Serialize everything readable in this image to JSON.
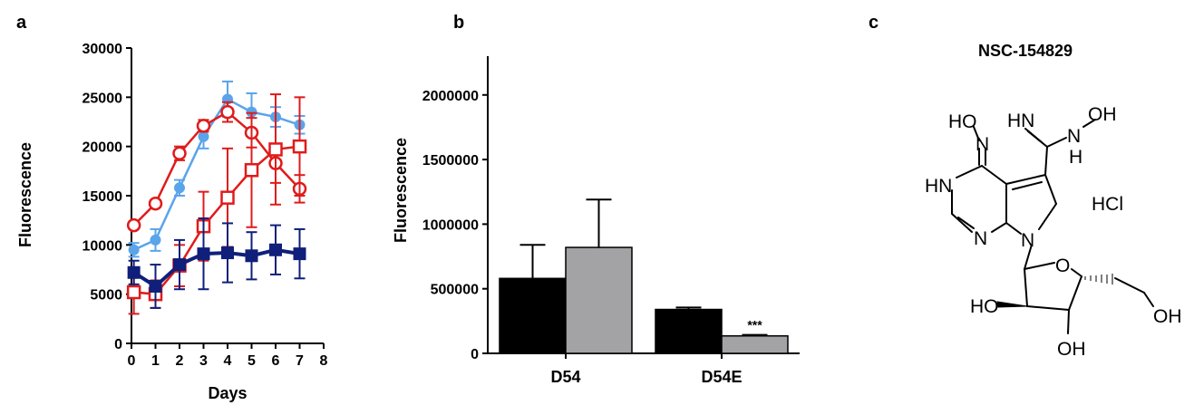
{
  "panels": {
    "a": {
      "letter": "a"
    },
    "b": {
      "letter": "b"
    },
    "c": {
      "letter": "c"
    }
  },
  "chart_data": [
    {
      "type": "line",
      "xlabel": "Days",
      "ylabel": "Fluorescence",
      "xlim": [
        0,
        8
      ],
      "ylim": [
        0,
        30000
      ],
      "xticks": [
        0,
        1,
        2,
        3,
        4,
        5,
        6,
        7,
        8
      ],
      "yticks": [
        0,
        5000,
        10000,
        15000,
        20000,
        25000,
        30000
      ],
      "grid": false,
      "series": [
        {
          "color": "#5aa4ea",
          "marker": "filled-circle",
          "x": [
            0.1,
            1,
            2,
            3,
            4,
            5,
            6,
            7
          ],
          "y": [
            9500,
            10500,
            15800,
            21000,
            24800,
            23500,
            23000,
            22200
          ],
          "err": [
            700,
            1100,
            800,
            1200,
            1800,
            1900,
            1000,
            900
          ]
        },
        {
          "color": "#e01b1b",
          "marker": "open-circle",
          "x": [
            0.1,
            1,
            2,
            3,
            4,
            5,
            6,
            7
          ],
          "y": [
            12000,
            14200,
            19300,
            22100,
            23500,
            21400,
            18300,
            15700
          ],
          "err": [
            300,
            400,
            700,
            600,
            1000,
            1500,
            2000,
            1400
          ]
        },
        {
          "color": "#e01b1b",
          "marker": "open-square",
          "x": [
            0.1,
            1,
            2,
            3,
            4,
            5,
            6,
            7
          ],
          "y": [
            5200,
            5000,
            7900,
            11900,
            14800,
            17600,
            19700,
            20000
          ],
          "err": [
            2200,
            1400,
            2100,
            3500,
            5000,
            5800,
            5600,
            5000
          ]
        },
        {
          "color": "#0f1f7a",
          "marker": "filled-square",
          "x": [
            0.1,
            1,
            2,
            3,
            4,
            5,
            6,
            7
          ],
          "y": [
            7200,
            5800,
            8000,
            9100,
            9200,
            8900,
            9500,
            9100
          ],
          "err": [
            1200,
            2200,
            2500,
            3600,
            3000,
            2400,
            2500,
            2500
          ]
        }
      ]
    },
    {
      "type": "bar",
      "xlabel": "",
      "ylabel": "Fluorescence",
      "ylim": [
        0,
        2300000
      ],
      "yticks": [
        0,
        500000,
        1000000,
        1500000,
        2000000
      ],
      "categories": [
        "D54",
        "D54E"
      ],
      "series": [
        {
          "color": "#000000",
          "values": [
            580000,
            340000
          ],
          "err": [
            260000,
            15000
          ]
        },
        {
          "color": "#a3a3a6",
          "values": [
            820000,
            135000
          ],
          "err": [
            370000,
            8000
          ]
        }
      ],
      "annotations": [
        {
          "category": "D54E",
          "series": 1,
          "text": "***"
        }
      ]
    }
  ],
  "structure": {
    "title": "NSC-154829",
    "labels": {
      "oxime_oh_left": "HO",
      "oxime_n_left": "N",
      "imine_nh": "HN",
      "oxime_oh_right": "OH",
      "amine_n": "N",
      "amine_h": "H",
      "ring_nh": "HN",
      "ring_n": "N",
      "pyrrole_n": "N",
      "salt": "HCl",
      "ring_o": "O",
      "sugar_oh_left": "HO",
      "sugar_oh_bottom": "OH",
      "sugar_oh_right": "OH"
    }
  }
}
